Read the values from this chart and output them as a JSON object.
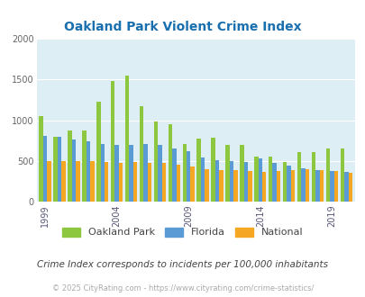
{
  "title": "Oakland Park Violent Crime Index",
  "subtitle": "Crime Index corresponds to incidents per 100,000 inhabitants",
  "footer": "© 2025 CityRating.com - https://www.cityrating.com/crime-statistics/",
  "years": [
    1999,
    2000,
    2001,
    2002,
    2003,
    2004,
    2005,
    2006,
    2007,
    2008,
    2009,
    2010,
    2011,
    2012,
    2013,
    2014,
    2015,
    2016,
    2017,
    2018,
    2019,
    2020
  ],
  "oakland_park": [
    1055,
    800,
    875,
    880,
    1230,
    1480,
    1550,
    1170,
    990,
    950,
    710,
    780,
    790,
    695,
    695,
    550,
    560,
    490,
    610,
    605,
    650,
    660
  ],
  "florida": [
    810,
    800,
    760,
    740,
    710,
    700,
    700,
    710,
    695,
    660,
    625,
    545,
    515,
    500,
    490,
    535,
    480,
    445,
    410,
    390,
    375,
    365
  ],
  "national": [
    500,
    505,
    505,
    500,
    490,
    475,
    490,
    480,
    475,
    460,
    435,
    405,
    390,
    385,
    375,
    365,
    375,
    395,
    400,
    385,
    380,
    360
  ],
  "bar_colors": {
    "oakland_park": "#8dc63f",
    "florida": "#5b9bd5",
    "national": "#f5a623"
  },
  "ylim": [
    0,
    2000
  ],
  "yticks": [
    0,
    500,
    1000,
    1500,
    2000
  ],
  "xtick_years": [
    1999,
    2004,
    2009,
    2014,
    2019
  ],
  "background_color": "#deeef5",
  "title_color": "#1a6faf",
  "subtitle_color": "#444444",
  "footer_color": "#aaaaaa",
  "legend_labels": [
    "Oakland Park",
    "Florida",
    "National"
  ],
  "grid_color": "#ffffff",
  "xtick_color": "#555577",
  "ytick_color": "#666666"
}
